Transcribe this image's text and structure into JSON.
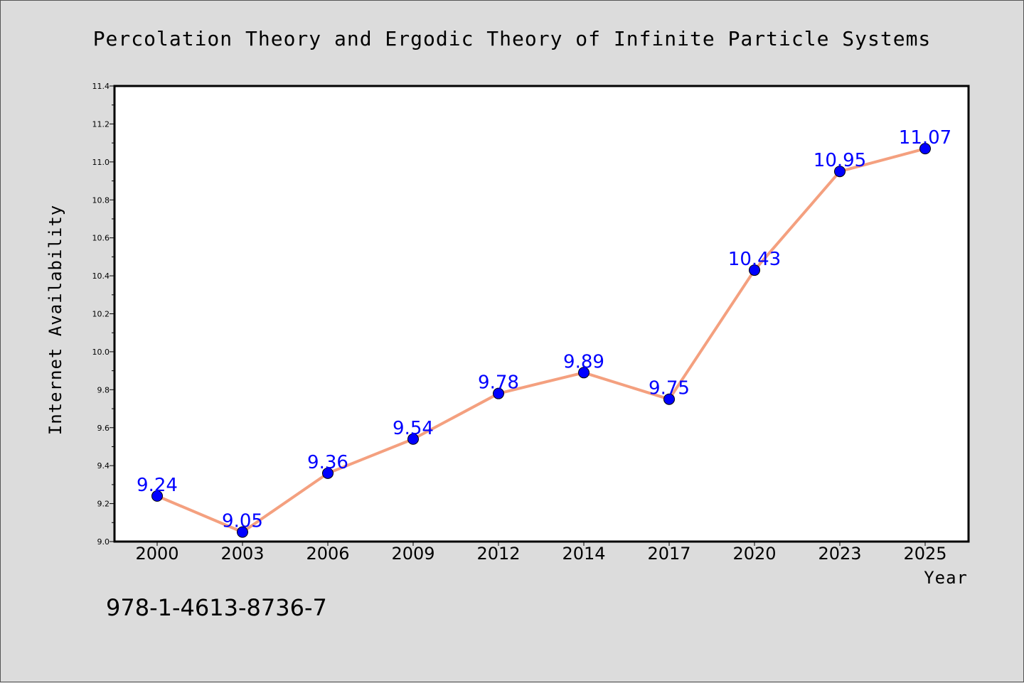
{
  "chart_data": {
    "type": "line",
    "title": "Percolation Theory and Ergodic Theory of Infinite Particle Systems",
    "xlabel": "Year",
    "ylabel": "Internet Availability",
    "categories": [
      "2000",
      "2003",
      "2006",
      "2009",
      "2012",
      "2014",
      "2017",
      "2020",
      "2023",
      "2025"
    ],
    "values": [
      9.24,
      9.05,
      9.36,
      9.54,
      9.78,
      9.89,
      9.75,
      10.43,
      10.95,
      11.07
    ],
    "data_labels": [
      "9.24",
      "9.05",
      "9.36",
      "9.54",
      "9.78",
      "9.89",
      "9.75",
      "10.43",
      "10.95",
      "11.07"
    ],
    "ylim": [
      9.0,
      11.4
    ],
    "yticks": [
      "9.0",
      "9.2",
      "9.4",
      "9.6",
      "9.8",
      "10.0",
      "10.2",
      "10.4",
      "10.6",
      "10.8",
      "11.0",
      "11.2",
      "11.4"
    ],
    "grid": false,
    "line_color": "#f4a07f",
    "marker_color": "#0000ff",
    "label_color": "#0000ff"
  },
  "footer": {
    "isbn": "978-1-4613-8736-7"
  },
  "colors": {
    "background": "#dcdcdc",
    "plot_background": "#ffffff"
  }
}
